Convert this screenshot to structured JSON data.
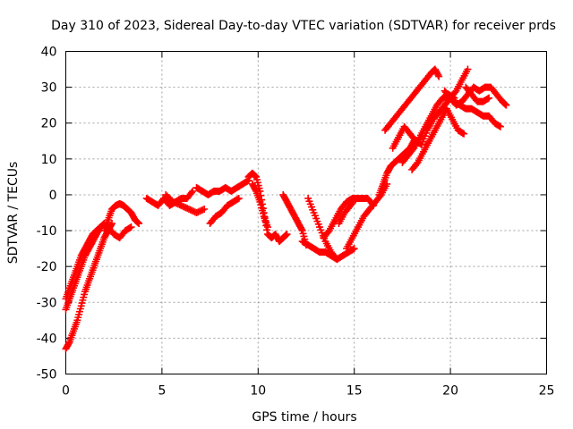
{
  "chart_data": {
    "type": "scatter",
    "title": "Day 310 of 2023, Sidereal Day-to-day VTEC variation (SDTVAR) for receiver prds",
    "xlabel": "GPS time / hours",
    "ylabel": "SDTVAR / TECUs",
    "xlim": [
      0,
      25
    ],
    "ylim": [
      -50,
      40
    ],
    "xticks": [
      0,
      5,
      10,
      15,
      20,
      25
    ],
    "yticks": [
      -50,
      -40,
      -30,
      -20,
      -10,
      0,
      10,
      20,
      30,
      40
    ],
    "grid": true,
    "marker": "plus",
    "color": "#ff0000",
    "series": [
      {
        "x": [
          0.0,
          0.2,
          0.4,
          0.6,
          0.8,
          1.0,
          1.2,
          1.4,
          1.6,
          1.8,
          2.0,
          2.2,
          2.4
        ],
        "y": [
          -43,
          -41,
          -38,
          -35,
          -31,
          -27,
          -24,
          -21,
          -18,
          -15,
          -12,
          -10,
          -8
        ]
      },
      {
        "x": [
          0.0,
          0.2,
          0.4,
          0.6,
          0.8,
          1.0,
          1.2,
          1.4,
          1.6,
          1.8,
          2.0
        ],
        "y": [
          -32,
          -29,
          -26,
          -23,
          -20,
          -17,
          -15,
          -13,
          -11,
          -9,
          -8
        ]
      },
      {
        "x": [
          0.0,
          0.2,
          0.4,
          0.6,
          0.8,
          1.0,
          1.2,
          1.4,
          1.6,
          1.8
        ],
        "y": [
          -29,
          -26,
          -23,
          -20,
          -17,
          -15,
          -13,
          -11,
          -10,
          -9
        ]
      },
      {
        "x": [
          2.0,
          2.2,
          2.4,
          2.6,
          2.8,
          3.0,
          3.2,
          3.4,
          3.6,
          3.8
        ],
        "y": [
          -10,
          -7,
          -4,
          -3,
          -2.5,
          -3,
          -4,
          -5,
          -7,
          -8
        ]
      },
      {
        "x": [
          2.2,
          2.5,
          2.8,
          3.1,
          3.4
        ],
        "y": [
          -9,
          -11,
          -12,
          -10,
          -9
        ]
      },
      {
        "x": [
          4.2,
          4.5,
          4.8,
          5.1,
          5.4,
          5.7,
          6.0,
          6.3,
          6.6
        ],
        "y": [
          -1,
          -2,
          -3,
          -1,
          -3,
          -2,
          -1,
          -1,
          1
        ]
      },
      {
        "x": [
          5.2,
          5.6,
          6.0,
          6.4,
          6.8,
          7.2
        ],
        "y": [
          0,
          -2,
          -3,
          -4,
          -5,
          -4
        ]
      },
      {
        "x": [
          6.8,
          7.1,
          7.4,
          7.7,
          8.0,
          8.3,
          8.6,
          8.9,
          9.2,
          9.5
        ],
        "y": [
          2,
          1,
          0,
          1,
          1,
          2,
          1,
          2,
          3,
          4
        ]
      },
      {
        "x": [
          7.5,
          7.8,
          8.1,
          8.4,
          8.7,
          9.0
        ],
        "y": [
          -8,
          -6,
          -5,
          -3,
          -2,
          -1
        ]
      },
      {
        "x": [
          9.5,
          9.7,
          9.9,
          10.1,
          10.3,
          10.5,
          10.7,
          10.9,
          11.1,
          11.3,
          11.5
        ],
        "y": [
          5,
          6,
          5,
          1,
          -5,
          -11,
          -12,
          -11,
          -13,
          -12,
          -11
        ]
      },
      {
        "x": [
          9.7,
          9.9,
          10.1,
          10.3,
          10.5
        ],
        "y": [
          3,
          1,
          -2,
          -6,
          -9
        ]
      },
      {
        "x": [
          11.3,
          11.5,
          11.7,
          11.9,
          12.1,
          12.3,
          12.5
        ],
        "y": [
          0,
          -2,
          -4,
          -6,
          -8,
          -10,
          -14
        ]
      },
      {
        "x": [
          12.3,
          12.6,
          12.9,
          13.2,
          13.5,
          13.8,
          14.1,
          14.4,
          14.7,
          15.0
        ],
        "y": [
          -13,
          -14,
          -15,
          -16,
          -16,
          -17,
          -18,
          -17,
          -16,
          -15
        ]
      },
      {
        "x": [
          12.6,
          12.9,
          13.2,
          13.5,
          13.8,
          14.1
        ],
        "y": [
          -1,
          -5,
          -9,
          -13,
          -16,
          -18
        ]
      },
      {
        "x": [
          13.4,
          13.7,
          14.0,
          14.3,
          14.6,
          14.9,
          15.2,
          15.5
        ],
        "y": [
          -12,
          -10,
          -7,
          -4,
          -2,
          -1,
          -1,
          -1
        ]
      },
      {
        "x": [
          14.2,
          14.5,
          14.8,
          15.1,
          15.4,
          15.7,
          16.0
        ],
        "y": [
          -8,
          -5,
          -3,
          -1,
          -1,
          -1,
          -3
        ]
      },
      {
        "x": [
          14.6,
          14.9,
          15.2,
          15.5,
          15.8,
          16.1,
          16.4,
          16.7
        ],
        "y": [
          -15,
          -12,
          -9,
          -6,
          -4,
          -2,
          0,
          3
        ]
      },
      {
        "x": [
          16.3,
          16.5,
          16.7,
          16.9,
          17.1,
          17.3,
          17.5,
          17.7,
          17.9,
          18.1
        ],
        "y": [
          0,
          3,
          6,
          8,
          9,
          10,
          11,
          12,
          13,
          15
        ]
      },
      {
        "x": [
          16.6,
          16.9,
          17.2,
          17.5,
          17.8,
          18.1,
          18.4,
          18.7,
          19.0,
          19.2,
          19.4
        ],
        "y": [
          18,
          20,
          22,
          24,
          26,
          28,
          30,
          32,
          34,
          35,
          33
        ]
      },
      {
        "x": [
          17.0,
          17.3,
          17.6,
          17.9,
          18.2,
          18.5
        ],
        "y": [
          13,
          16,
          19,
          17,
          15,
          14
        ]
      },
      {
        "x": [
          17.5,
          17.8,
          18.1,
          18.4,
          18.7,
          19.0,
          19.3,
          19.6,
          19.9,
          20.2
        ],
        "y": [
          9,
          11,
          13,
          16,
          19,
          22,
          25,
          27,
          28,
          27
        ]
      },
      {
        "x": [
          18.0,
          18.3,
          18.6,
          18.9,
          19.2,
          19.5,
          19.8
        ],
        "y": [
          7,
          9,
          12,
          15,
          18,
          21,
          24
        ]
      },
      {
        "x": [
          18.5,
          18.8,
          19.1,
          19.4,
          19.7,
          20.0,
          20.3,
          20.6,
          20.9
        ],
        "y": [
          14,
          18,
          21,
          23,
          25,
          27,
          29,
          32,
          35
        ]
      },
      {
        "x": [
          19.7,
          20.0,
          20.3,
          20.6,
          20.9,
          21.2,
          21.5,
          21.8,
          22.1,
          22.4,
          22.7,
          22.9
        ],
        "y": [
          29,
          27,
          25,
          26,
          28,
          30,
          29,
          30,
          30,
          28,
          26,
          25
        ]
      },
      {
        "x": [
          19.8,
          20.1,
          20.4,
          20.7
        ],
        "y": [
          24,
          21,
          18,
          17
        ]
      },
      {
        "x": [
          20.2,
          20.5,
          20.8,
          21.1,
          21.4,
          21.7,
          22.0,
          22.3,
          22.6
        ],
        "y": [
          26,
          25,
          24,
          24,
          23,
          22,
          22,
          20,
          19
        ]
      },
      {
        "x": [
          20.8,
          21.1,
          21.4,
          21.7,
          22.0
        ],
        "y": [
          30,
          28,
          26,
          26,
          27
        ]
      }
    ]
  }
}
